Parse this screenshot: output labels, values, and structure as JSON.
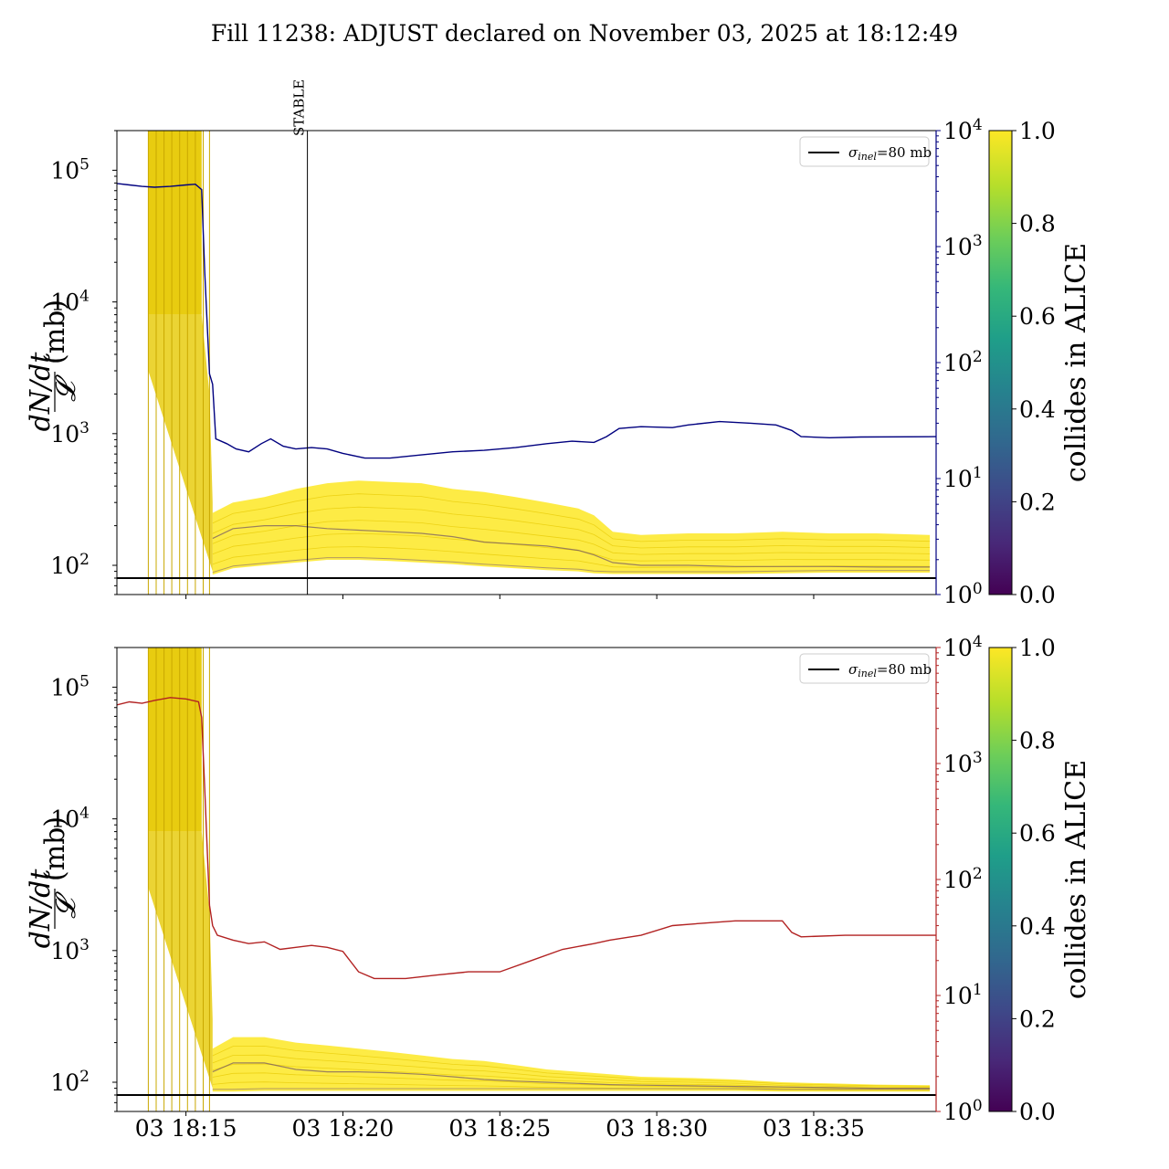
{
  "figure": {
    "title": "Fill 11238: ADJUST declared on November 03, 2025 at 18:12:49"
  },
  "chart_data": [
    {
      "type": "line",
      "panel": "top",
      "y_label_num": "dN/dt",
      "y_label_den": "𝓛",
      "y_label_unit": "(mb)",
      "y_scale": "log",
      "ylim": [
        60,
        200000
      ],
      "y_ticks": [
        {
          "label": "10",
          "exp": "2",
          "value": 100
        },
        {
          "label": "10",
          "exp": "3",
          "value": 1000
        },
        {
          "label": "10",
          "exp": "4",
          "value": 10000
        },
        {
          "label": "10",
          "exp": "5",
          "value": 100000
        }
      ],
      "x_ticks": [
        "03 18:15",
        "03 18:20",
        "03 18:25",
        "03 18:30",
        "03 18:35"
      ],
      "xlim_minutes": [
        12.8,
        38.9
      ],
      "x_tick_minutes": [
        15,
        20,
        25,
        30,
        35
      ],
      "right_axis": {
        "color": "#00007f",
        "y_scale": "log",
        "ylim": [
          1,
          10000
        ],
        "ticks": [
          {
            "label": "10",
            "exp": "0",
            "value": 1
          },
          {
            "label": "10",
            "exp": "1",
            "value": 10
          },
          {
            "label": "10",
            "exp": "2",
            "value": 100
          },
          {
            "label": "10",
            "exp": "3",
            "value": 1000
          },
          {
            "label": "10",
            "exp": "4",
            "value": 10000
          }
        ]
      },
      "reference_line": {
        "label_sym": "σ",
        "label_sub": "inel",
        "label_rest": "=80 mb",
        "value": 80,
        "color": "#000000"
      },
      "annotation": {
        "text": "STABLE",
        "x_minute": 18.87
      },
      "spike_minutes": [
        13.8,
        14.05,
        14.3,
        14.55,
        14.8,
        15.05,
        15.3,
        15.55,
        15.75
      ],
      "right_series": {
        "name": "",
        "color": "#00007f",
        "points": [
          [
            12.8,
            3500
          ],
          [
            13.2,
            3400
          ],
          [
            13.6,
            3300
          ],
          [
            14.0,
            3250
          ],
          [
            14.5,
            3300
          ],
          [
            15.0,
            3400
          ],
          [
            15.3,
            3450
          ],
          [
            15.5,
            3100
          ],
          [
            15.6,
            600
          ],
          [
            15.75,
            80
          ],
          [
            15.85,
            65
          ],
          [
            15.95,
            22
          ],
          [
            16.3,
            20
          ],
          [
            16.6,
            18
          ],
          [
            17.0,
            17
          ],
          [
            17.4,
            20
          ],
          [
            17.7,
            22
          ],
          [
            18.1,
            19
          ],
          [
            18.5,
            18
          ],
          [
            19.0,
            18.5
          ],
          [
            19.5,
            18
          ],
          [
            20.0,
            16.5
          ],
          [
            20.7,
            15
          ],
          [
            21.5,
            15
          ],
          [
            22.5,
            16
          ],
          [
            23.5,
            17
          ],
          [
            24.5,
            17.5
          ],
          [
            25.5,
            18.5
          ],
          [
            26.5,
            20
          ],
          [
            27.3,
            21
          ],
          [
            28.0,
            20.5
          ],
          [
            28.4,
            23
          ],
          [
            28.8,
            27
          ],
          [
            29.5,
            28
          ],
          [
            30.5,
            27.5
          ],
          [
            31.0,
            29
          ],
          [
            32.0,
            31
          ],
          [
            33.0,
            30
          ],
          [
            33.8,
            29
          ],
          [
            34.3,
            26
          ],
          [
            34.6,
            23
          ],
          [
            35.5,
            22.5
          ],
          [
            36.5,
            22.8
          ],
          [
            38.9,
            23
          ]
        ]
      },
      "band": {
        "upper": [
          [
            15.85,
            250
          ],
          [
            16.5,
            300
          ],
          [
            17.5,
            330
          ],
          [
            18.5,
            380
          ],
          [
            19.5,
            420
          ],
          [
            20.5,
            440
          ],
          [
            21.5,
            430
          ],
          [
            22.5,
            420
          ],
          [
            23.5,
            380
          ],
          [
            24.5,
            360
          ],
          [
            25.5,
            330
          ],
          [
            26.5,
            300
          ],
          [
            27.5,
            270
          ],
          [
            28.0,
            240
          ],
          [
            28.6,
            180
          ],
          [
            29.5,
            170
          ],
          [
            31.0,
            175
          ],
          [
            32.5,
            175
          ],
          [
            34.0,
            180
          ],
          [
            35.5,
            175
          ],
          [
            37.0,
            175
          ],
          [
            38.7,
            170
          ]
        ],
        "lower": [
          [
            15.85,
            85
          ],
          [
            16.5,
            95
          ],
          [
            17.5,
            100
          ],
          [
            18.5,
            105
          ],
          [
            19.5,
            110
          ],
          [
            20.5,
            110
          ],
          [
            21.5,
            108
          ],
          [
            22.5,
            105
          ],
          [
            23.5,
            102
          ],
          [
            24.5,
            98
          ],
          [
            25.5,
            95
          ],
          [
            26.5,
            92
          ],
          [
            27.5,
            90
          ],
          [
            28.0,
            87
          ],
          [
            28.6,
            86
          ],
          [
            29.5,
            86
          ],
          [
            31.0,
            86
          ],
          [
            32.5,
            86
          ],
          [
            34.0,
            87
          ],
          [
            35.5,
            88
          ],
          [
            37.0,
            88
          ],
          [
            38.7,
            88
          ]
        ],
        "dark_line": [
          [
            15.85,
            160
          ],
          [
            16.5,
            190
          ],
          [
            17.5,
            200
          ],
          [
            18.5,
            200
          ],
          [
            19.5,
            190
          ],
          [
            20.5,
            185
          ],
          [
            21.5,
            180
          ],
          [
            22.5,
            175
          ],
          [
            23.5,
            165
          ],
          [
            24.5,
            150
          ],
          [
            25.5,
            145
          ],
          [
            26.5,
            140
          ],
          [
            27.5,
            130
          ],
          [
            28.0,
            120
          ],
          [
            28.6,
            105
          ],
          [
            29.5,
            100
          ],
          [
            31.0,
            100
          ],
          [
            32.5,
            98
          ],
          [
            34.0,
            98
          ],
          [
            35.5,
            98
          ],
          [
            37.0,
            97
          ],
          [
            38.7,
            97
          ]
        ]
      }
    },
    {
      "type": "line",
      "panel": "bottom",
      "y_label_num": "dN/dt",
      "y_label_den": "𝓛",
      "y_label_unit": "(mb)",
      "y_scale": "log",
      "ylim": [
        60,
        200000
      ],
      "y_ticks": [
        {
          "label": "10",
          "exp": "2",
          "value": 100
        },
        {
          "label": "10",
          "exp": "3",
          "value": 1000
        },
        {
          "label": "10",
          "exp": "4",
          "value": 10000
        },
        {
          "label": "10",
          "exp": "5",
          "value": 100000
        }
      ],
      "x_ticks": [
        "03 18:15",
        "03 18:20",
        "03 18:25",
        "03 18:30",
        "03 18:35"
      ],
      "xlim_minutes": [
        12.8,
        38.9
      ],
      "x_tick_minutes": [
        15,
        20,
        25,
        30,
        35
      ],
      "right_axis": {
        "color": "#b22222",
        "y_scale": "log",
        "ylim": [
          1,
          10000
        ],
        "ticks": [
          {
            "label": "10",
            "exp": "0",
            "value": 1
          },
          {
            "label": "10",
            "exp": "1",
            "value": 10
          },
          {
            "label": "10",
            "exp": "2",
            "value": 100
          },
          {
            "label": "10",
            "exp": "3",
            "value": 1000
          },
          {
            "label": "10",
            "exp": "4",
            "value": 10000
          }
        ]
      },
      "reference_line": {
        "label_sym": "σ",
        "label_sub": "inel",
        "label_rest": "=80 mb",
        "value": 80,
        "color": "#000000"
      },
      "spike_minutes": [
        13.8,
        14.05,
        14.3,
        14.55,
        14.8,
        15.05,
        15.3,
        15.55,
        15.75
      ],
      "right_series": {
        "name": "",
        "color": "#b22222",
        "points": [
          [
            12.8,
            3200
          ],
          [
            13.2,
            3400
          ],
          [
            13.6,
            3300
          ],
          [
            14.0,
            3500
          ],
          [
            14.5,
            3700
          ],
          [
            15.0,
            3600
          ],
          [
            15.4,
            3400
          ],
          [
            15.5,
            2500
          ],
          [
            15.6,
            600
          ],
          [
            15.75,
            60
          ],
          [
            15.85,
            40
          ],
          [
            16.0,
            33
          ],
          [
            16.5,
            30
          ],
          [
            17.0,
            28
          ],
          [
            17.5,
            29
          ],
          [
            18.0,
            25
          ],
          [
            18.5,
            26
          ],
          [
            19.0,
            27
          ],
          [
            19.5,
            26
          ],
          [
            20.0,
            24
          ],
          [
            20.5,
            16
          ],
          [
            21.0,
            14
          ],
          [
            22.0,
            14
          ],
          [
            23.0,
            15
          ],
          [
            24.0,
            16
          ],
          [
            25.0,
            16
          ],
          [
            26.0,
            20
          ],
          [
            27.0,
            25
          ],
          [
            28.0,
            28
          ],
          [
            28.5,
            30
          ],
          [
            29.5,
            33
          ],
          [
            30.5,
            40
          ],
          [
            31.5,
            42
          ],
          [
            32.5,
            44
          ],
          [
            33.5,
            44
          ],
          [
            34.0,
            44
          ],
          [
            34.3,
            35
          ],
          [
            34.6,
            32
          ],
          [
            36.0,
            33
          ],
          [
            37.5,
            33
          ],
          [
            38.9,
            33
          ]
        ]
      },
      "band": {
        "upper": [
          [
            15.85,
            180
          ],
          [
            16.5,
            220
          ],
          [
            17.5,
            220
          ],
          [
            18.5,
            200
          ],
          [
            19.5,
            190
          ],
          [
            20.5,
            180
          ],
          [
            21.5,
            170
          ],
          [
            22.5,
            160
          ],
          [
            23.5,
            150
          ],
          [
            24.5,
            145
          ],
          [
            25.5,
            135
          ],
          [
            26.5,
            125
          ],
          [
            27.5,
            120
          ],
          [
            28.5,
            115
          ],
          [
            29.5,
            110
          ],
          [
            31.0,
            108
          ],
          [
            32.5,
            105
          ],
          [
            34.0,
            100
          ],
          [
            35.5,
            98
          ],
          [
            37.0,
            96
          ],
          [
            38.7,
            95
          ]
        ],
        "lower": [
          [
            15.85,
            85
          ],
          [
            16.5,
            85
          ],
          [
            17.5,
            86
          ],
          [
            18.5,
            86
          ],
          [
            19.5,
            86
          ],
          [
            20.5,
            86
          ],
          [
            21.5,
            86
          ],
          [
            22.5,
            86
          ],
          [
            23.5,
            86
          ],
          [
            24.5,
            86
          ],
          [
            25.5,
            86
          ],
          [
            26.5,
            86
          ],
          [
            27.5,
            86
          ],
          [
            28.5,
            86
          ],
          [
            29.5,
            86
          ],
          [
            31.0,
            86
          ],
          [
            32.5,
            86
          ],
          [
            34.0,
            85
          ],
          [
            35.5,
            85
          ],
          [
            37.0,
            85
          ],
          [
            38.7,
            85
          ]
        ],
        "dark_line": [
          [
            15.85,
            120
          ],
          [
            16.5,
            140
          ],
          [
            17.5,
            140
          ],
          [
            18.5,
            125
          ],
          [
            19.5,
            120
          ],
          [
            20.5,
            120
          ],
          [
            21.5,
            118
          ],
          [
            22.5,
            115
          ],
          [
            23.5,
            110
          ],
          [
            24.5,
            105
          ],
          [
            25.5,
            102
          ],
          [
            26.5,
            100
          ],
          [
            27.5,
            98
          ],
          [
            28.5,
            96
          ],
          [
            29.5,
            95
          ],
          [
            31.0,
            94
          ],
          [
            32.5,
            93
          ],
          [
            34.0,
            92
          ],
          [
            35.5,
            91
          ],
          [
            37.0,
            90
          ],
          [
            38.7,
            90
          ]
        ]
      }
    }
  ],
  "colorbar": {
    "label": "collides in ALICE",
    "ticks": [
      "0.0",
      "0.2",
      "0.4",
      "0.6",
      "0.8",
      "1.0"
    ],
    "tick_values": [
      0.0,
      0.2,
      0.4,
      0.6,
      0.8,
      1.0
    ],
    "colormap": "viridis",
    "stops": [
      "#440154",
      "#482878",
      "#3e4989",
      "#31688e",
      "#26828e",
      "#1f9e89",
      "#35b779",
      "#6ece58",
      "#b5de2b",
      "#fde725"
    ]
  }
}
